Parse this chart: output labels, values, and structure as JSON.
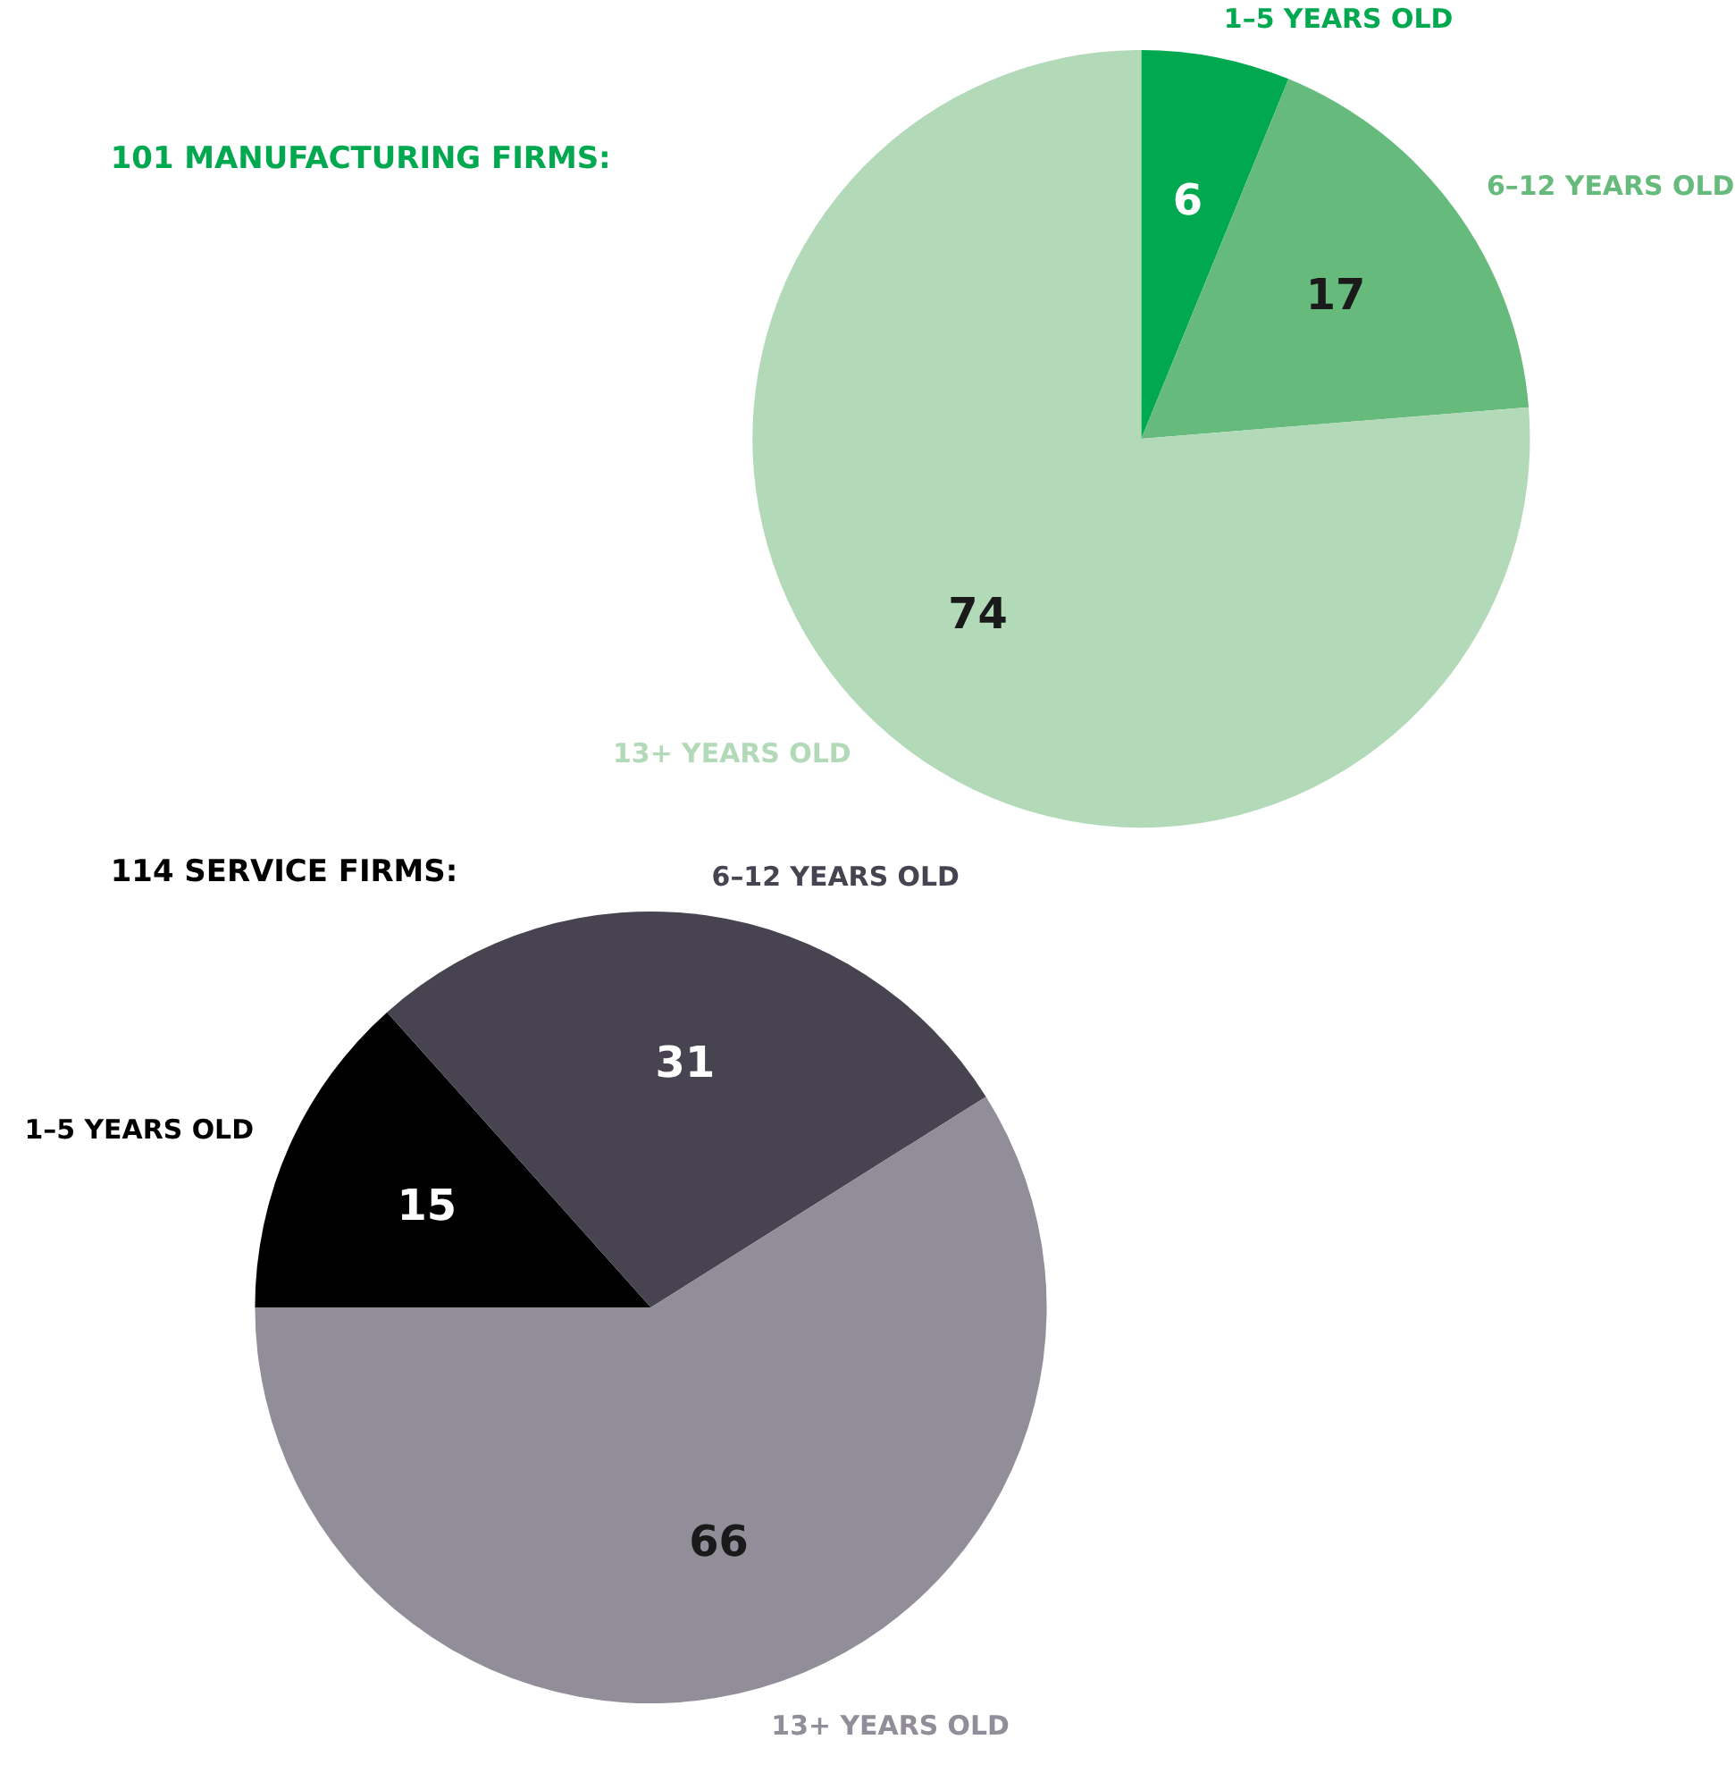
{
  "chart_data": [
    {
      "type": "pie",
      "title": "101 MANUFACTURING FIRMS:",
      "categories": [
        "1–5 YEARS OLD",
        "6–12 YEARS OLD",
        "13+ YEARS OLD"
      ],
      "values": [
        6,
        17,
        74
      ],
      "colors": [
        "#00a84f",
        "#66bb7c",
        "#b3dab8"
      ],
      "data_labels": true
    },
    {
      "type": "pie",
      "title": "114 SERVICE FIRMS:",
      "categories": [
        "1–5 YEARS OLD",
        "6–12 YEARS OLD",
        "13+ YEARS OLD"
      ],
      "values": [
        15,
        31,
        66
      ],
      "colors": [
        "#000000",
        "#474350",
        "#918d99"
      ],
      "data_labels": true
    }
  ]
}
